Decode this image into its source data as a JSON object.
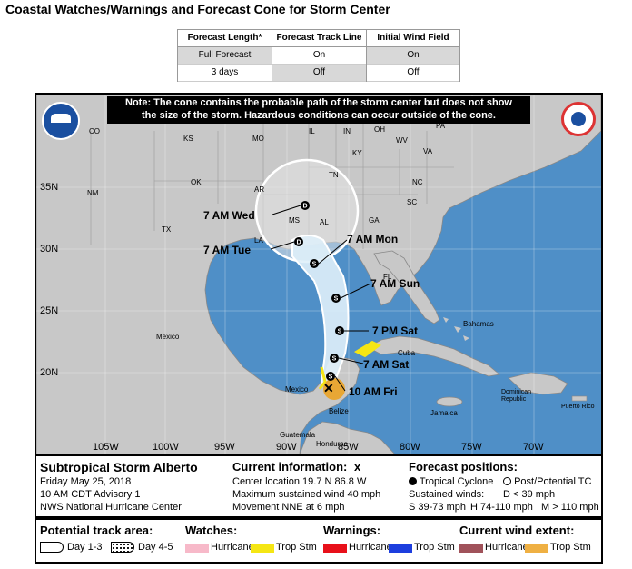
{
  "page_title": "Coastal Watches/Warnings and Forecast Cone for Storm Center",
  "options": {
    "columns": [
      {
        "header": "Forecast Length*",
        "rows": [
          "Full Forecast",
          "3 days"
        ],
        "selected": 0
      },
      {
        "header": "Forecast Track Line",
        "rows": [
          "On",
          "Off"
        ],
        "selected": 1
      },
      {
        "header": "Initial Wind Field",
        "rows": [
          "On",
          "Off"
        ],
        "selected": 0
      }
    ]
  },
  "map": {
    "note": [
      "Note: The cone contains the probable path of the storm center but does not show",
      "the size of the storm. Hazardous conditions can occur outside of the cone."
    ],
    "lat_labels": [
      "35N",
      "30N",
      "25N",
      "20N"
    ],
    "lon_labels": [
      "105W",
      "100W",
      "95W",
      "90W",
      "85W",
      "80W",
      "75W",
      "70W"
    ],
    "state_labels": [
      "CO",
      "KS",
      "MO",
      "IL",
      "IN",
      "OH",
      "PA",
      "KY",
      "WV",
      "VA",
      "TN",
      "NC",
      "OK",
      "NM",
      "AR",
      "SC",
      "MS",
      "AL",
      "GA",
      "TX",
      "LA",
      "FL"
    ],
    "place_labels": [
      "Mexico",
      "Mexico",
      "Bahamas",
      "Cuba",
      "Dominican Republic",
      "Jamaica",
      "Guatemala",
      "Honduras",
      "Belize",
      "Puerto Rico"
    ],
    "forecast_points": [
      {
        "label": "10 AM Fri",
        "symbol": "S"
      },
      {
        "label": "7 AM Sat",
        "symbol": "S"
      },
      {
        "label": "7 PM Sat",
        "symbol": "S"
      },
      {
        "label": "7 AM Sun",
        "symbol": "S"
      },
      {
        "label": "7 AM Mon",
        "symbol": "S"
      },
      {
        "label": "7 AM Tue",
        "symbol": "D"
      },
      {
        "label": "7 AM Wed",
        "symbol": "D"
      }
    ],
    "colors": {
      "ocean": "#4f8fc7",
      "land": "#c8c8c8",
      "cone": "#ffffff",
      "trop_storm_warning": "#f5e614",
      "wind_field": "#e8a735"
    }
  },
  "info": {
    "storm_name": "Subtropical Storm Alberto",
    "date": "Friday May 25, 2018",
    "advisory": "10 AM CDT Advisory 1",
    "center": "NWS National Hurricane Center",
    "current_title": "Current information:",
    "current_icon": "x",
    "location": "Center location 19.7 N 86.8 W",
    "max_wind": "Maximum sustained wind 40 mph",
    "movement": "Movement NNE at 6 mph",
    "forecast_title": "Forecast positions:",
    "tropical_cyclone": "Tropical Cyclone",
    "post_tc": "Post/Potential TC",
    "sustained": "Sustained winds:",
    "d_scale": "D < 39 mph",
    "s_scale": "S 39-73 mph",
    "h_scale": "H 74-110 mph",
    "m_scale": "M > 110 mph"
  },
  "legend": {
    "potential_title": "Potential track area:",
    "day13": "Day 1-3",
    "day45": "Day 4-5",
    "watches_title": "Watches:",
    "warnings_title": "Warnings:",
    "wind_title": "Current wind extent:",
    "hurricane": "Hurricane",
    "trop_stm": "Trop Stm",
    "colors": {
      "hurricane_watch": "#f7b9c9",
      "trop_stm_watch": "#f5e614",
      "hurricane_warning": "#e8101a",
      "trop_stm_warning": "#1d3ede",
      "hurricane_wind": "#a0525a",
      "trop_stm_wind": "#efb043"
    }
  }
}
